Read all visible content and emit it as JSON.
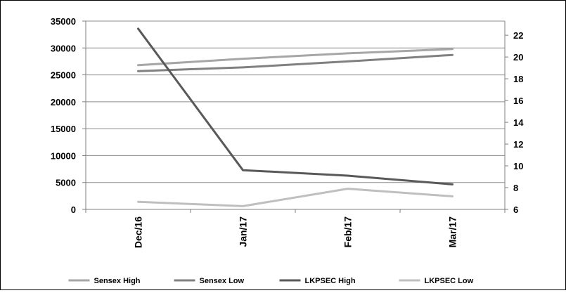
{
  "chart_data": {
    "type": "line",
    "title": "",
    "xlabel": "",
    "ylabel": "",
    "categories": [
      "Dec/16",
      "Jan/17",
      "Feb/17",
      "Mar/17"
    ],
    "y_axis_left": {
      "min": 0,
      "max": 35000,
      "step": 5000,
      "ticks": [
        "0",
        "5000",
        "10000",
        "15000",
        "20000",
        "25000",
        "30000",
        "35000"
      ]
    },
    "y_axis_right": {
      "min": 6,
      "max": 23.3,
      "ticks": [
        "6",
        "8",
        "10",
        "12",
        "14",
        "16",
        "18",
        "20",
        "22"
      ]
    },
    "grid": true,
    "legend": "bottom",
    "series": [
      {
        "name": "Sensex High",
        "axis": "left",
        "color": "#a6a6a6",
        "values": [
          26800,
          28000,
          29000,
          29800
        ]
      },
      {
        "name": "Sensex Low",
        "axis": "left",
        "color": "#808080",
        "values": [
          25700,
          26400,
          27500,
          28700
        ]
      },
      {
        "name": "LKPSEC High",
        "axis": "right",
        "color": "#595959",
        "values": [
          22.6,
          9.6,
          9.1,
          8.3
        ]
      },
      {
        "name": "LKPSEC Low",
        "axis": "right",
        "color": "#bfbfbf",
        "values": [
          6.7,
          6.3,
          7.9,
          7.2
        ]
      }
    ]
  }
}
